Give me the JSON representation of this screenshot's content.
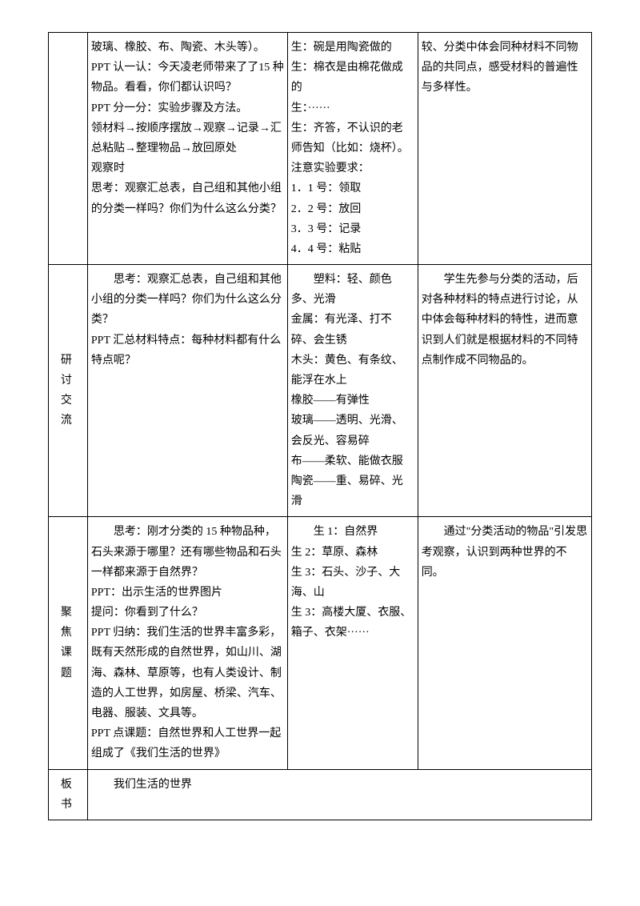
{
  "rows": [
    {
      "label": "",
      "teacher": [
        "玻璃、橡胶、布、陶瓷、木头等）。",
        "PPT 认一认：今天凌老师带来了了15 种物品。看看，你们都认识吗？",
        "",
        "PPT 分一分：实验步骤及方法。",
        "领材料→按顺序摆放→观察→记录→汇总粘贴→整理物品→放回原处",
        "观察时",
        "思考：观察汇总表，自己组和其他小组的分类一样吗？你们为什么这么分类？"
      ],
      "student": [
        "生：碗是用陶瓷做的",
        "生：棉衣是由棉花做成的",
        "生：······",
        "",
        "生：齐答，不认识的老师告知（比如：烧杯）。",
        "注意实验要求：",
        "1．1 号：领取",
        "2．2 号：放回",
        "3．3 号：记录",
        "4．4 号：粘贴"
      ],
      "note": [
        "较、分类中体会同种材料不同物品的共同点，感受材料的普遍性与多样性。"
      ]
    },
    {
      "label": "研　讨\n交　流",
      "teacher": [
        "",
        "",
        "　　思考：观察汇总表，自己组和其他小组的分类一样吗？你们为什么这么分类？",
        "PPT 汇总材料特点：每种材料都有什么特点呢？"
      ],
      "student": [
        "　　塑料：轻、颜色多、光滑",
        "金属：有光泽、打不碎、会生锈",
        "木头：黄色、有条纹、能浮在水上",
        "橡胶——有弹性",
        "玻璃——透明、光滑、会反光、容易碎",
        "布——柔软、能做衣服",
        "陶瓷——重、易碎、光滑"
      ],
      "note": [
        "",
        "　　学生先参与分类的活动，后对各种材料的特点进行讨论，从中体会每种材料的特性，进而意识到人们就是根据材料的不同特点制作成不同物品的。"
      ]
    },
    {
      "label": "聚　焦\n课　题",
      "teacher": [
        "　　思考：刚才分类的 15 种物品种，石头来源于哪里？还有哪些物品和石头一样都来源于自然界？",
        "",
        "PPT：出示生活的世界图片",
        "提问：你看到了什么？",
        "PPT 归纳：我们生活的世界丰富多彩，既有天然形成的自然世界，如山川、湖海、森林、草原等，也有人类设计、制造的人工世界，如房屋、桥梁、汽车、电器、服装、文具等。",
        "PPT 点课题：自然世界和人工世界一起组成了《我们生活的世界》"
      ],
      "student": [
        "",
        "",
        "　　生 1：自然界",
        "生 2：草原、森林",
        "生 3：石头、沙子、大海、山",
        "生 3：高楼大厦、衣服、箱子、衣架······"
      ],
      "note": [
        "",
        "",
        "　　通过\"分类活动的物品\"引发思考观察，认识到两种世界的不同。"
      ]
    },
    {
      "label": "板\n书",
      "board": "　　我们生活的世界"
    }
  ]
}
